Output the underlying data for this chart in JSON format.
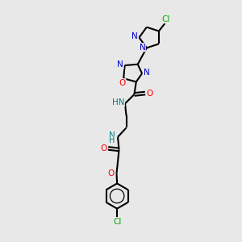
{
  "bg_color": "#e8e8e8",
  "atom_colors": {
    "N": "#0000cc",
    "O": "#ff0000",
    "Cl": "#00aa00",
    "NH": "#008080"
  },
  "bond_color": "#000000",
  "bond_width": 1.5,
  "figsize": [
    3.0,
    3.0
  ],
  "dpi": 100
}
